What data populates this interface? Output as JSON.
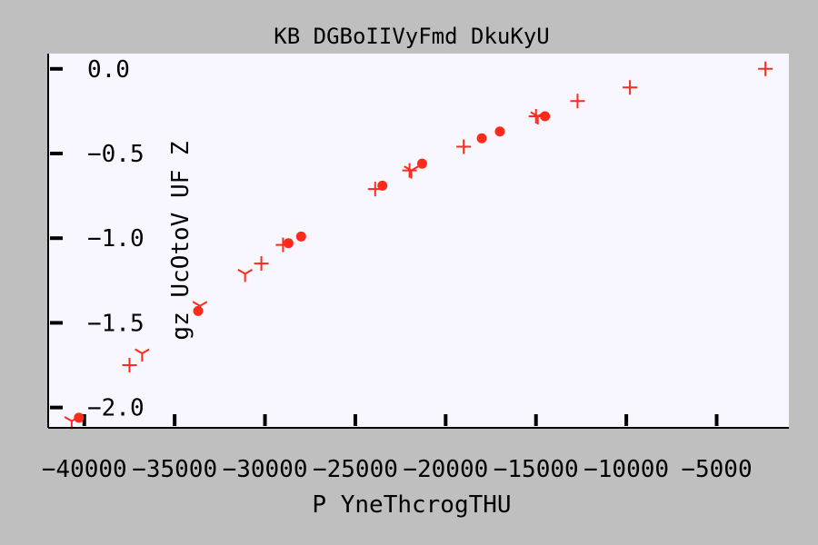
{
  "chart_data": {
    "type": "scatter",
    "title": "KB DGBoIIVyFmd DkuKyU",
    "xlabel": "P YneThcrogTHU",
    "ylabel": "gz UcOtoV UF Z",
    "xlim": [
      -42000,
      -1000
    ],
    "ylim": [
      -2.12,
      0.09
    ],
    "x_ticks": [
      -40000,
      -35000,
      -30000,
      -25000,
      -20000,
      -15000,
      -10000,
      -5000
    ],
    "x_tick_labels": [
      "−40000",
      "−35000",
      "−30000",
      "−25000",
      "−20000",
      "−15000",
      "−10000",
      "−5000"
    ],
    "y_ticks": [
      0.0,
      -0.5,
      -1.0,
      -1.5,
      -2.0
    ],
    "y_tick_labels": [
      "0.0",
      "−0.5",
      "−1.0",
      "−1.5",
      "−2.0"
    ],
    "grid": false,
    "background_color": "#f8f7ff",
    "series": [
      {
        "marker": "circle",
        "color": "#ff2a1a",
        "x": [
          -40300,
          -33700,
          -28700,
          -28000,
          -23500,
          -21300,
          -18000,
          -17000,
          -14500
        ],
        "y": [
          -2.06,
          -1.43,
          -1.03,
          -0.99,
          -0.69,
          -0.56,
          -0.41,
          -0.37,
          -0.28
        ]
      },
      {
        "marker": "plus",
        "color": "#ff2a1a",
        "x": [
          -37500,
          -30200,
          -29000,
          -23900,
          -22000,
          -19000,
          -15000,
          -12700,
          -9800,
          -2300
        ],
        "y": [
          -1.75,
          -1.15,
          -1.04,
          -0.71,
          -0.6,
          -0.46,
          -0.28,
          -0.19,
          -0.11,
          0.0
        ]
      },
      {
        "marker": "tri_down",
        "color": "#ff2a1a",
        "x": [
          -40700,
          -36800,
          -33600,
          -31100,
          -21900,
          -14900
        ],
        "y": [
          -2.08,
          -1.68,
          -1.4,
          -1.21,
          -0.6,
          -0.28
        ]
      }
    ]
  }
}
